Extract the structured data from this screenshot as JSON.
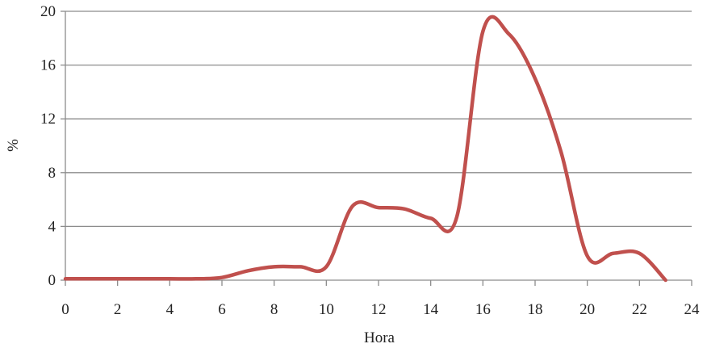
{
  "chart_data": {
    "type": "line",
    "title": "",
    "xlabel": "Hora",
    "ylabel": "%",
    "xlim": [
      0,
      24
    ],
    "ylim": [
      0,
      20
    ],
    "x_ticks": [
      0,
      2,
      4,
      6,
      8,
      10,
      12,
      14,
      16,
      18,
      20,
      22,
      24
    ],
    "y_ticks": [
      0,
      4,
      8,
      12,
      16,
      20
    ],
    "grid": "horizontal",
    "legend": "none",
    "series": [
      {
        "color": "#c0504d",
        "x": [
          0,
          1,
          2,
          3,
          4,
          5,
          6,
          7,
          8,
          9,
          10,
          11,
          12,
          13,
          14,
          15,
          16,
          17,
          18,
          19,
          20,
          21,
          22,
          23
        ],
        "y": [
          0.1,
          0.1,
          0.1,
          0.1,
          0.1,
          0.1,
          0.2,
          0.7,
          1.0,
          1.0,
          1.0,
          5.5,
          5.4,
          5.3,
          4.6,
          4.7,
          18.5,
          18.3,
          15.0,
          9.5,
          1.8,
          2.0,
          2.0,
          0.0
        ]
      }
    ],
    "colors": {
      "line": "#c0504d",
      "grid": "#8c8c8c",
      "axis": "#8c8c8c",
      "text": "#222222"
    }
  }
}
